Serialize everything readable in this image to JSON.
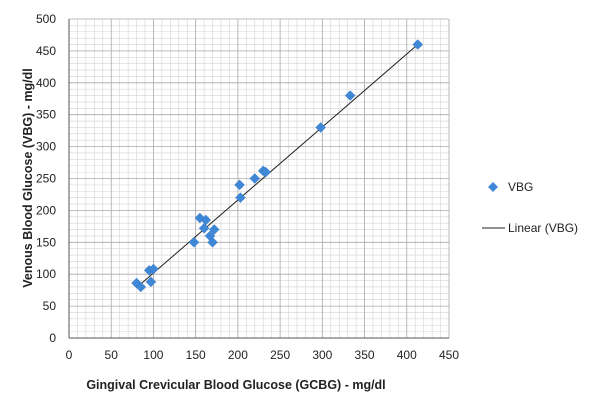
{
  "chart_data": {
    "type": "scatter",
    "xlabel": "Gingival Crevicular Blood Glucose (GCBG) - mg/dl",
    "ylabel": "Venous Blood Glucose (VBG) - mg/dl",
    "xlim": [
      0,
      450
    ],
    "ylim": [
      0,
      500
    ],
    "x_ticks": [
      "0",
      "50",
      "100",
      "150",
      "200",
      "250",
      "300",
      "350",
      "400",
      "450"
    ],
    "y_ticks": [
      "0",
      "50",
      "100",
      "150",
      "200",
      "250",
      "300",
      "350",
      "400",
      "450",
      "500"
    ],
    "grid": true,
    "legend_position": "right",
    "marker_color": "#3f88d8",
    "trend_color": "#222222",
    "series": [
      {
        "name": "VBG",
        "marker": "diamond",
        "points": [
          {
            "x": 80,
            "y": 86
          },
          {
            "x": 85,
            "y": 80
          },
          {
            "x": 95,
            "y": 106
          },
          {
            "x": 97,
            "y": 88
          },
          {
            "x": 100,
            "y": 108
          },
          {
            "x": 148,
            "y": 150
          },
          {
            "x": 155,
            "y": 188
          },
          {
            "x": 160,
            "y": 172
          },
          {
            "x": 162,
            "y": 185
          },
          {
            "x": 167,
            "y": 160
          },
          {
            "x": 170,
            "y": 150
          },
          {
            "x": 172,
            "y": 170
          },
          {
            "x": 202,
            "y": 240
          },
          {
            "x": 203,
            "y": 220
          },
          {
            "x": 220,
            "y": 250
          },
          {
            "x": 230,
            "y": 262
          },
          {
            "x": 233,
            "y": 260
          },
          {
            "x": 298,
            "y": 330
          },
          {
            "x": 333,
            "y": 380
          },
          {
            "x": 413,
            "y": 460
          }
        ]
      },
      {
        "name": "Linear (VBG)",
        "type": "line",
        "points": [
          {
            "x": 80,
            "y": 79
          },
          {
            "x": 413,
            "y": 460
          }
        ]
      }
    ]
  }
}
